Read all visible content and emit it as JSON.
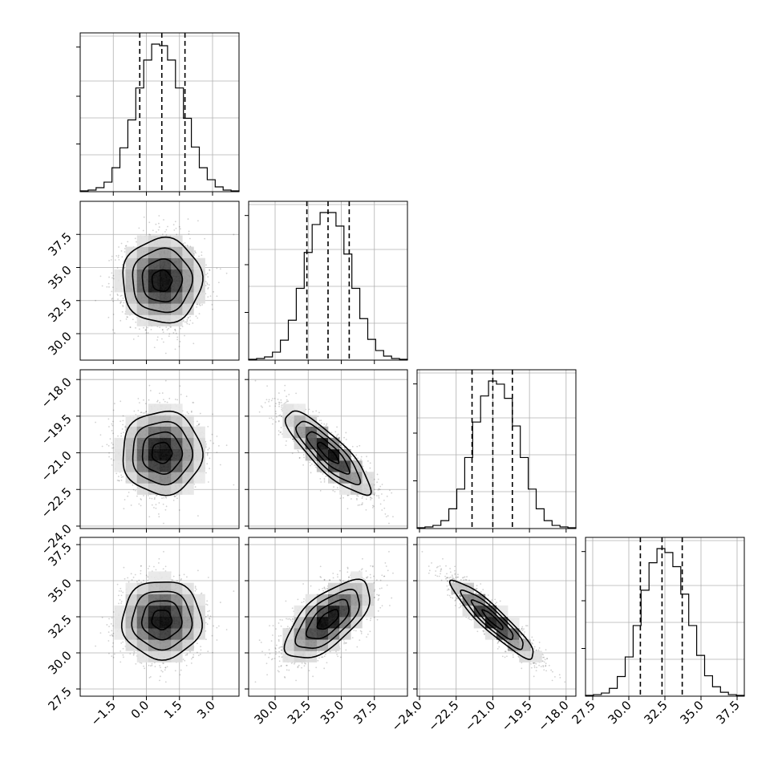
{
  "chart_data": {
    "type": "corner",
    "parameters": [
      {
        "name": "",
        "ticks": [
          -1.5,
          0.0,
          1.5,
          3.0
        ],
        "tick_labels": [
          "−1.5",
          "0.0",
          "1.5",
          "3.0"
        ],
        "range": [
          -3.0,
          4.2
        ],
        "quantiles": [
          -0.3,
          0.7,
          1.75
        ],
        "hist_values": [
          1,
          2,
          5,
          12,
          30,
          55,
          90,
          130,
          165,
          185,
          183,
          165,
          130,
          92,
          56,
          30,
          15,
          6,
          2,
          1
        ]
      },
      {
        "name": "",
        "ticks": [
          30.0,
          32.5,
          35.0,
          37.5
        ],
        "tick_labels": [
          "30.0",
          "32.5",
          "35.0",
          "37.5"
        ],
        "range": [
          28.0,
          40.0
        ],
        "quantiles": [
          32.4,
          34.0,
          35.6
        ],
        "hist_values": [
          1,
          2,
          4,
          10,
          25,
          50,
          90,
          135,
          170,
          185,
          185,
          168,
          133,
          90,
          52,
          26,
          12,
          5,
          2,
          1
        ]
      },
      {
        "name": "",
        "ticks": [
          -24.0,
          -22.5,
          -21.0,
          -19.5,
          -18.0
        ],
        "tick_labels": [
          "−24.0",
          "−22.5",
          "−21.0",
          "−19.5",
          "−18.0"
        ],
        "range": [
          -24.1,
          -17.6
        ],
        "quantiles": [
          -21.85,
          -21.0,
          -20.2
        ],
        "hist_values": [
          1,
          2,
          4,
          10,
          25,
          50,
          90,
          135,
          168,
          187,
          183,
          165,
          130,
          90,
          50,
          25,
          10,
          4,
          2,
          1
        ]
      },
      {
        "name": "",
        "ticks": [
          27.5,
          30.0,
          32.5,
          35.0,
          37.5
        ],
        "tick_labels": [
          "27.5",
          "30.0",
          "32.5",
          "35.0",
          "37.5"
        ],
        "range": [
          27.0,
          38.0
        ],
        "quantiles": [
          30.8,
          32.3,
          33.7
        ],
        "hist_values": [
          1,
          2,
          4,
          10,
          25,
          50,
          90,
          135,
          170,
          188,
          183,
          165,
          130,
          90,
          52,
          26,
          12,
          5,
          2,
          1
        ]
      }
    ],
    "correlations": [
      [
        1,
        0,
        0,
        0
      ],
      [
        0,
        1,
        -0.85,
        0.65
      ],
      [
        0,
        -0.85,
        1,
        -0.92
      ],
      [
        0,
        0.65,
        -0.92,
        1
      ]
    ],
    "sigmas": [
      0.9,
      1.6,
      0.85,
      1.35
    ],
    "grid": true,
    "hist_color": "#000000",
    "point_color": "#000000"
  }
}
